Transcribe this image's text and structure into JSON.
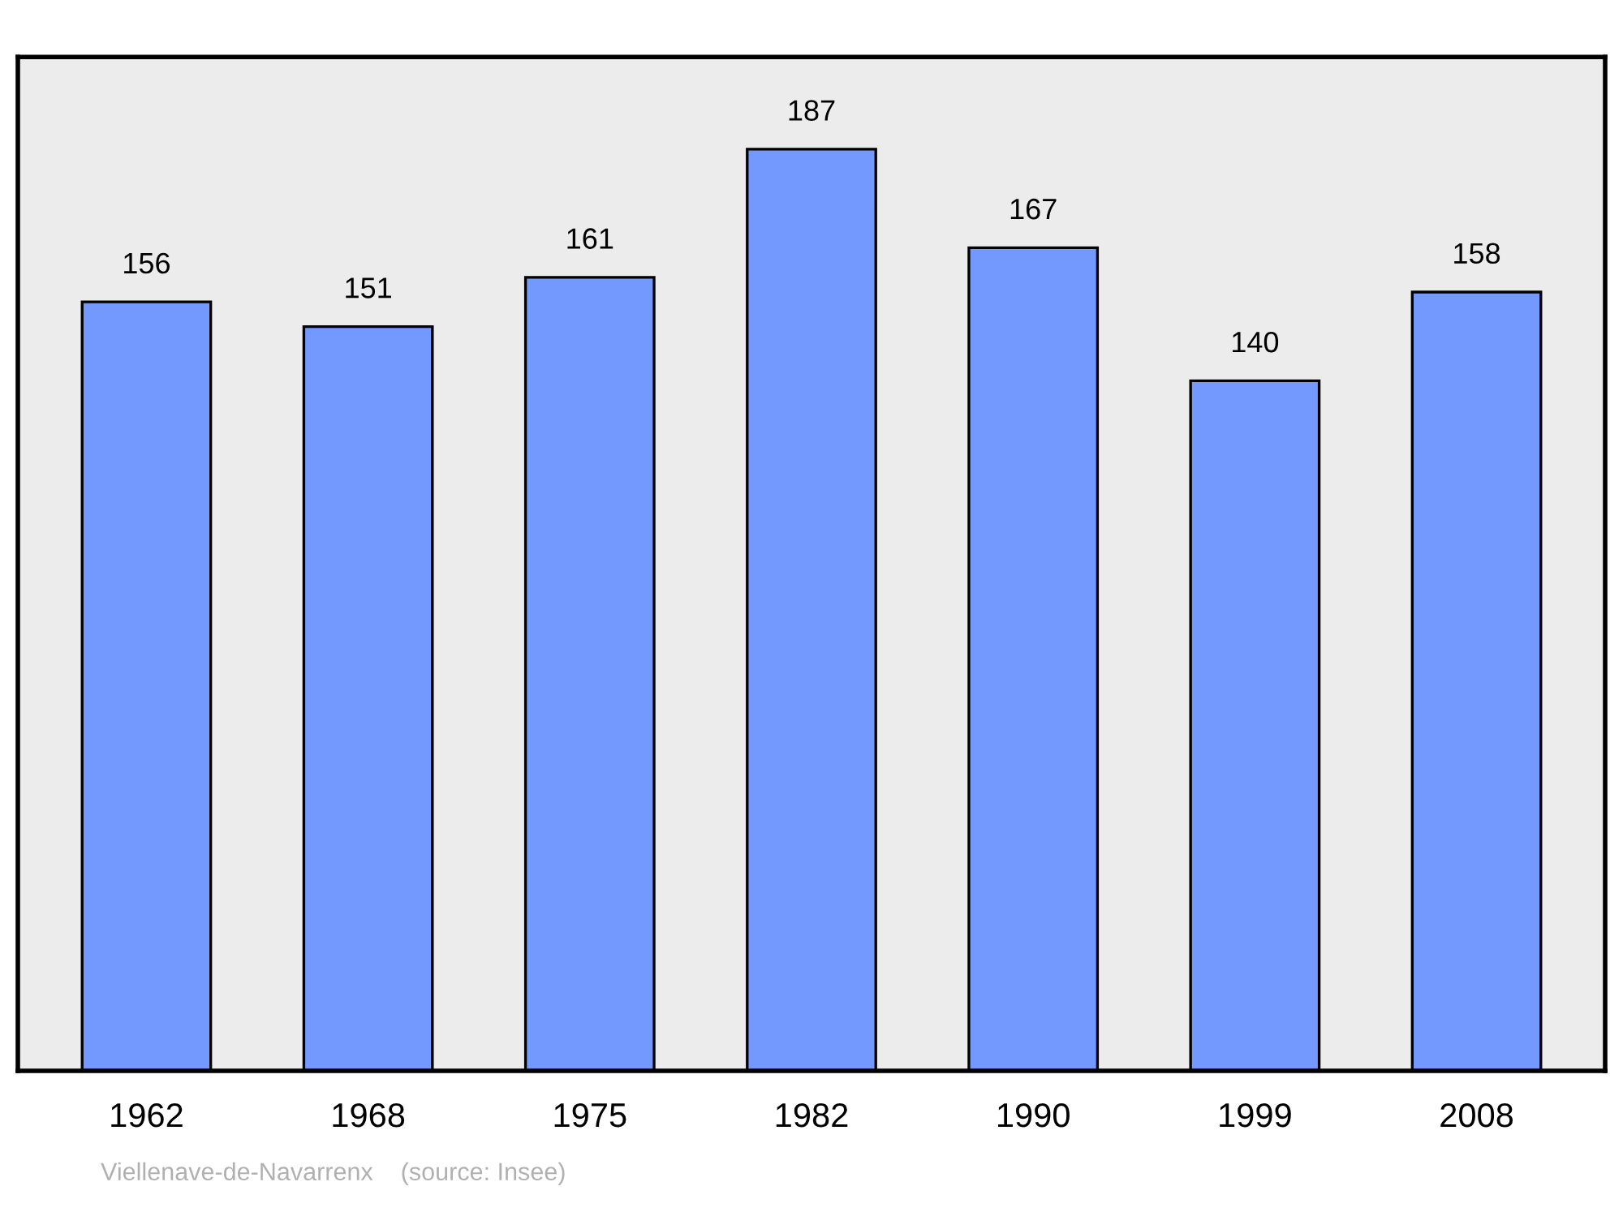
{
  "chart_data": {
    "type": "bar",
    "categories": [
      "1962",
      "1968",
      "1975",
      "1982",
      "1990",
      "1999",
      "2008"
    ],
    "values": [
      156,
      151,
      161,
      187,
      167,
      140,
      158
    ],
    "color": "#7399ff",
    "data_labels": true,
    "grid": false,
    "legend": false,
    "tick_labels": "x",
    "annotations": [
      "Viellenave-de-Navarrenx    (source: Insee)"
    ]
  }
}
